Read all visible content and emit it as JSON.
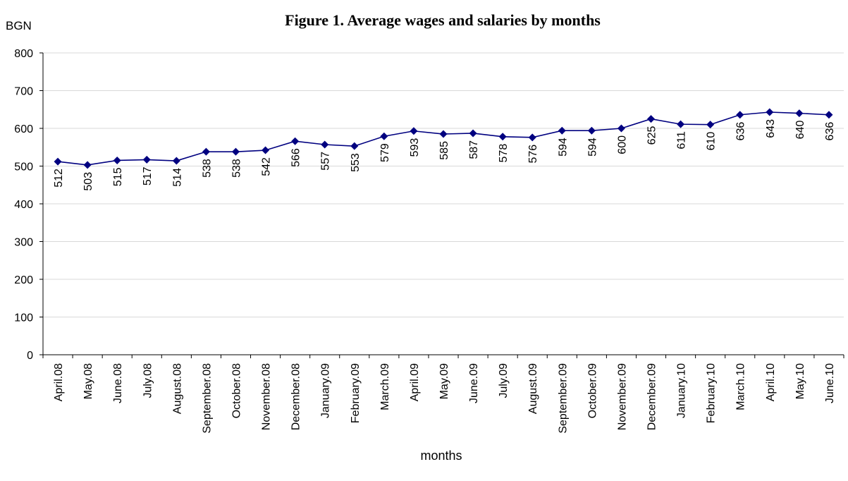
{
  "chart_data": {
    "type": "line",
    "title": "Figure 1. Average wages and salaries by months",
    "ylabel": "BGN",
    "xlabel": "months",
    "ylim": [
      0,
      800
    ],
    "yticks": [
      0,
      100,
      200,
      300,
      400,
      500,
      600,
      700,
      800
    ],
    "grid": true,
    "categories": [
      "April.08",
      "May.08",
      "June.08",
      "July.08",
      "August.08",
      "September.08",
      "October.08",
      "November.08",
      "December.08",
      "January.09",
      "February.09",
      "March.09",
      "April.09",
      "May.09",
      "June.09",
      "July.09",
      "August.09",
      "September.09",
      "October.09",
      "November.09",
      "December.09",
      "January.10",
      "February.10",
      "March.10",
      "April.10",
      "May.10",
      "June.10"
    ],
    "series": [
      {
        "values": [
          512,
          503,
          515,
          517,
          514,
          538,
          538,
          542,
          566,
          557,
          553,
          579,
          593,
          585,
          587,
          578,
          576,
          594,
          594,
          600,
          625,
          611,
          610,
          636,
          643,
          640,
          636
        ],
        "color": "#000080"
      }
    ]
  }
}
